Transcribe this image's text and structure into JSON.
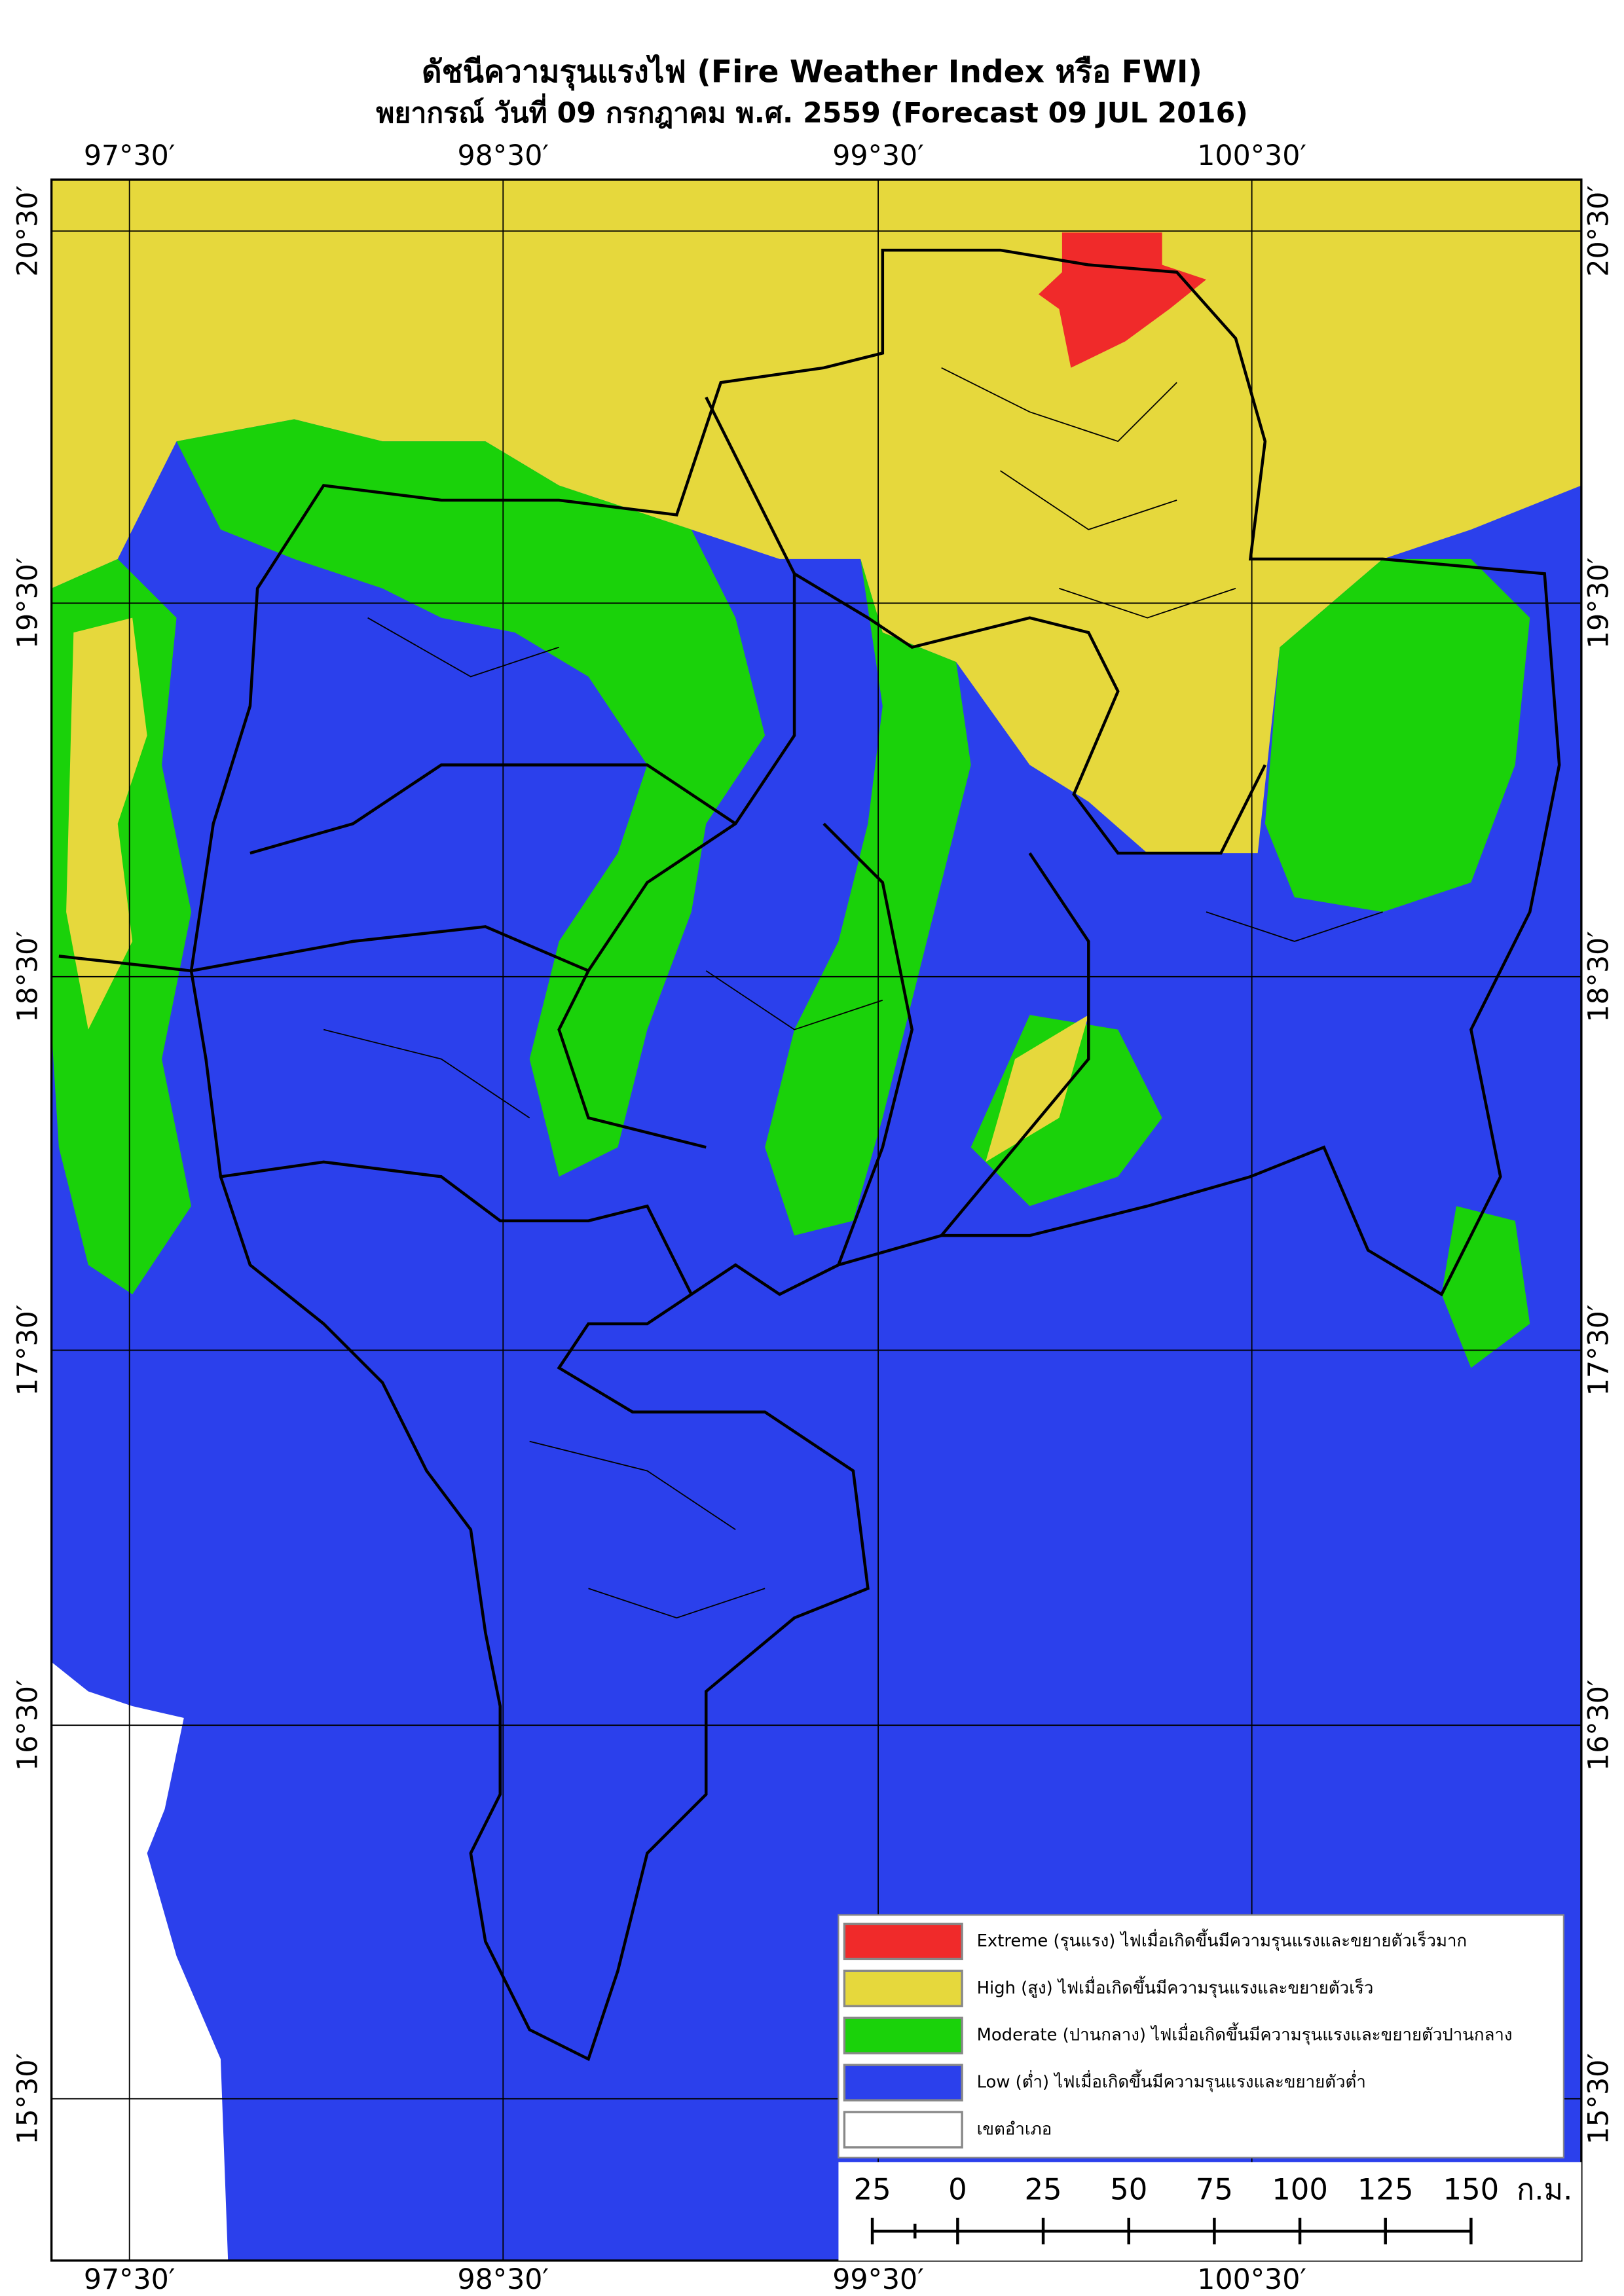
{
  "header": {
    "title": "ดัชนีความรุนแรงไฟ (Fire Weather Index หรือ FWI)",
    "subtitle": "พยากรณ์ วันที่ 09 กรกฎาคม พ.ศ. 2559 (Forecast 09 JUL 2016)"
  },
  "map": {
    "lon_labels": [
      "97°30′",
      "98°30′",
      "99°30′",
      "100°30′"
    ],
    "lat_labels": [
      "20°30′",
      "19°30′",
      "18°30′",
      "17°30′",
      "16°30′",
      "15°30′"
    ]
  },
  "legend": {
    "items": [
      {
        "label": "Extreme (รุนแรง) ไฟเมื่อเกิดขึ้นมีความรุนแรงและขยายตัวเร็วมาก",
        "color": "#f02a2a"
      },
      {
        "label": "High (สูง) ไฟเมื่อเกิดขึ้นมีความรุนแรงและขยายตัวเร็ว",
        "color": "#e6d83c"
      },
      {
        "label": "Moderate (ปานกลาง) ไฟเมื่อเกิดขึ้นมีความรุนแรงและขยายตัวปานกลาง",
        "color": "#1ad20a"
      },
      {
        "label": "Low (ต่ำ) ไฟเมื่อเกิดขึ้นมีความรุนแรงและขยายตัวต่ำ",
        "color": "#2b40ec"
      },
      {
        "label": "เขตอำเภอ",
        "color": "#ffffff"
      }
    ]
  },
  "scale_bar": {
    "labels": [
      "25",
      "0",
      "25",
      "50",
      "75",
      "100",
      "125",
      "150"
    ],
    "unit": "ก.ม."
  }
}
